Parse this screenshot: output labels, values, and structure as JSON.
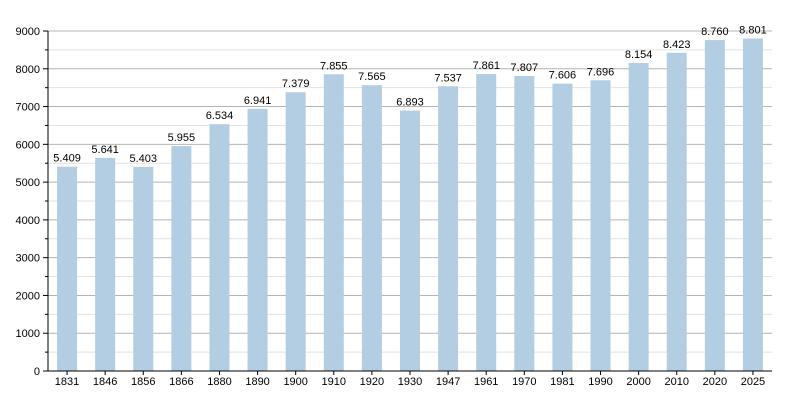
{
  "chart_data": {
    "type": "bar",
    "categories": [
      "1831",
      "1846",
      "1856",
      "1866",
      "1880",
      "1890",
      "1900",
      "1910",
      "1920",
      "1930",
      "1947",
      "1961",
      "1970",
      "1981",
      "1990",
      "2000",
      "2010",
      "2020",
      "2025"
    ],
    "values": [
      5409,
      5641,
      5403,
      5955,
      6534,
      6941,
      7379,
      7855,
      7565,
      6893,
      7537,
      7861,
      7807,
      7606,
      7696,
      8154,
      8423,
      8760,
      8801
    ],
    "data_labels": [
      "5.409",
      "5.641",
      "5.403",
      "5.955",
      "6.534",
      "6.941",
      "7.379",
      "7.855",
      "7.565",
      "6.893",
      "7.537",
      "7.861",
      "7.807",
      "7.606",
      "7.696",
      "8.154",
      "8.423",
      "8.760",
      "8.801"
    ],
    "title": "",
    "xlabel": "",
    "ylabel": "",
    "ylim": [
      0,
      9000
    ],
    "yticks": [
      "0",
      "1000",
      "2000",
      "3000",
      "4000",
      "5000",
      "6000",
      "7000",
      "8000",
      "9000"
    ],
    "grid": true,
    "legend": "none",
    "colors": {
      "bar": "#b3cde3",
      "grid_major": "#b4b4b4",
      "grid_minor": "#e2e2e2",
      "axis": "#000000"
    }
  }
}
